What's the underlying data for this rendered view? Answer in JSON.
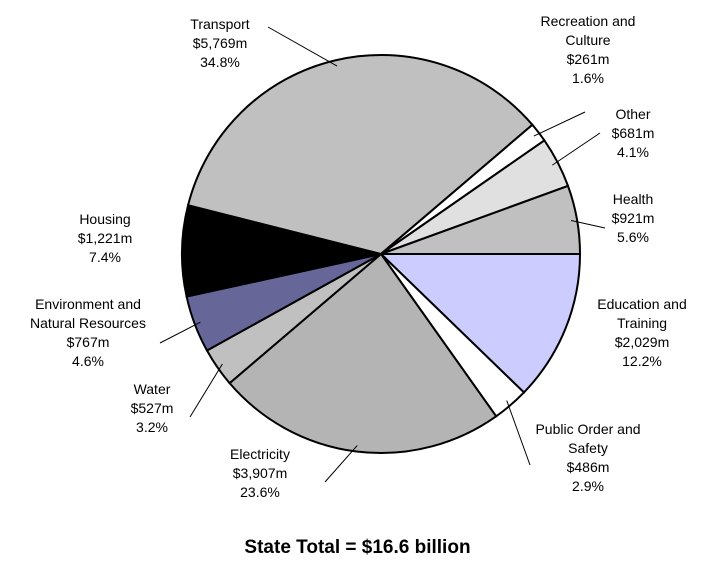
{
  "chart_data": {
    "type": "pie",
    "title": "State Total = $16.6 billion",
    "categories": [
      "Education and Training",
      "Public Order and Safety",
      "Electricity",
      "Water",
      "Environment and Natural Resources",
      "Housing",
      "Transport",
      "Recreation and Culture",
      "Other",
      "Health"
    ],
    "values": [
      2029,
      486,
      3907,
      527,
      767,
      1221,
      5769,
      261,
      681,
      921
    ],
    "value_labels": [
      "$2,029m",
      "$486m",
      "$3,907m",
      "$527m",
      "$767m",
      "$1,221m",
      "$5,769m",
      "$261m",
      "$681m",
      "$921m"
    ],
    "percents": [
      12.2,
      2.9,
      23.6,
      3.2,
      4.6,
      7.4,
      34.8,
      1.6,
      4.1,
      5.6
    ],
    "percent_labels": [
      "12.2%",
      "2.9%",
      "23.6%",
      "3.2%",
      "4.6%",
      "7.4%",
      "34.8%",
      "1.6%",
      "4.1%",
      "5.6%"
    ],
    "colors": [
      "#ccccff",
      "#ffffff",
      "#b4b4b4",
      "#c0c0c0",
      "#666699",
      "#000000",
      "#c0c0c0",
      "#ffffff",
      "#e0e0e0",
      "#c0c0c0"
    ]
  }
}
